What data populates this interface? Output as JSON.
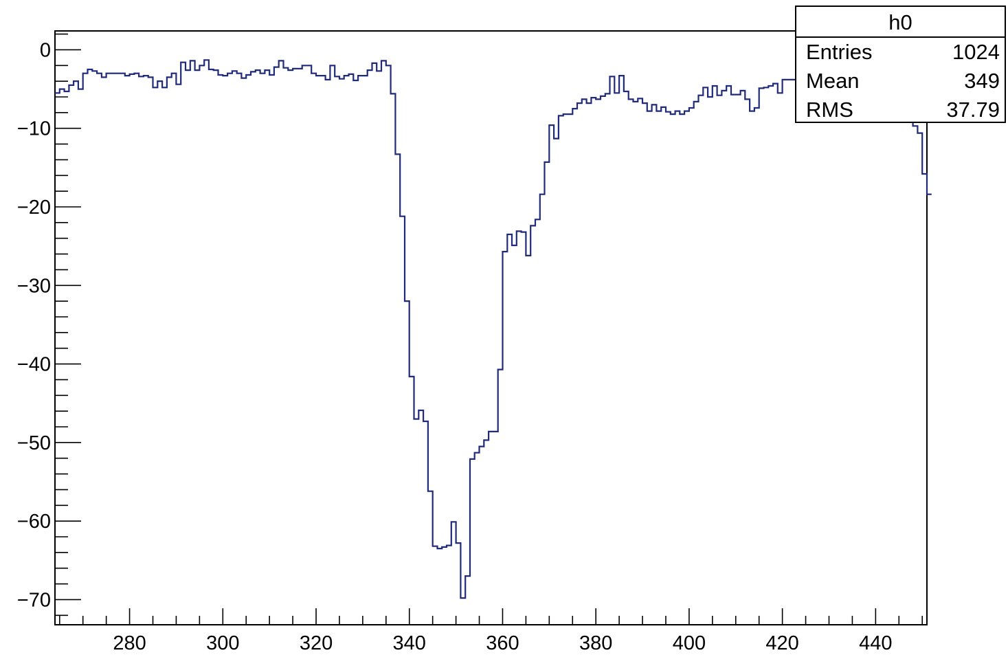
{
  "chart_data": {
    "type": "line",
    "drawstyle": "steps",
    "title": "",
    "xlabel": "",
    "ylabel": "",
    "xlim": [
      264,
      451
    ],
    "ylim": [
      -73.2,
      2.4
    ],
    "x_ticks": [
      280,
      300,
      320,
      340,
      360,
      380,
      400,
      420,
      440
    ],
    "y_ticks": [
      0,
      -10,
      -20,
      -30,
      -40,
      -50,
      -60,
      -70
    ],
    "bin_width": 1,
    "series": [
      {
        "color": "#1f2a7a",
        "x_start": 264,
        "values": [
          -5.5,
          -5,
          -5.3,
          -4.5,
          -4,
          -5,
          -3,
          -2.5,
          -2.7,
          -3,
          -3.5,
          -3,
          -3,
          -3,
          -3,
          -3.3,
          -3.1,
          -3,
          -3.4,
          -3.3,
          -3.5,
          -4.8,
          -4,
          -4.8,
          -3.5,
          -3,
          -4.4,
          -1.6,
          -2.6,
          -1.4,
          -2.6,
          -2,
          -1.3,
          -2.5,
          -2.6,
          -3.2,
          -3.3,
          -3,
          -2.7,
          -3,
          -3.6,
          -3.2,
          -2.8,
          -2.6,
          -3,
          -2.6,
          -3.2,
          -2.2,
          -1.4,
          -2.3,
          -2.6,
          -2.4,
          -2.4,
          -2,
          -2,
          -3,
          -3.3,
          -3.3,
          -3.8,
          -2,
          -3.4,
          -3.7,
          -3.3,
          -3.1,
          -3.9,
          -3.3,
          -3.3,
          -2.6,
          -1.7,
          -2.7,
          -1.4,
          -2,
          -5.6,
          -13.3,
          -21.2,
          -32.0,
          -41.6,
          -47.0,
          -45.9,
          -47.3,
          -56.2,
          -63.2,
          -63.5,
          -63.3,
          -63.1,
          -60.1,
          -62.8,
          -69.8,
          -67.0,
          -52.1,
          -51.3,
          -50.5,
          -49.7,
          -48.6,
          -48.6,
          -40.7,
          -25.7,
          -23.5,
          -24.9,
          -23.1,
          -23.2,
          -26.2,
          -22.4,
          -21.6,
          -18.4,
          -14.3,
          -9.6,
          -11.3,
          -8.4,
          -8.2,
          -8.2,
          -7.5,
          -6.8,
          -6.3,
          -6.8,
          -6.1,
          -6.3,
          -5.9,
          -5.6,
          -3.4,
          -5.5,
          -3.3,
          -5.3,
          -6.3,
          -6.6,
          -6.2,
          -6.8,
          -7.8,
          -7,
          -7.8,
          -7.3,
          -7.9,
          -8.2,
          -7.8,
          -8.2,
          -7.8,
          -7.4,
          -6.6,
          -5.8,
          -4.8,
          -6,
          -4.6,
          -5.8,
          -5.2,
          -4.6,
          -5.7,
          -5.7,
          -5.2,
          -6.3,
          -7.8,
          -7.4,
          -4.9,
          -4.8,
          -4.6,
          -4.3,
          -5.5,
          -3.8,
          -3.8,
          -3.8,
          -4.3,
          -3.8,
          -5,
          -3.2,
          -5.1,
          -4.4,
          -3.8,
          -6.6,
          -4.3,
          -4,
          -4.6,
          -4.3,
          -5.2,
          -3.2,
          -4.7,
          -2.8,
          -3.6,
          -3.8,
          -4.3,
          -3.3,
          -6.5,
          -5.5,
          -4.2,
          -4.8,
          -6.8,
          -9.7,
          -10.6,
          -15.8,
          -18.4
        ]
      }
    ]
  },
  "stats": {
    "title": "h0",
    "rows": [
      {
        "label": "Entries",
        "value": "1024"
      },
      {
        "label": "Mean",
        "value": "349"
      },
      {
        "label": "RMS",
        "value": "37.79"
      }
    ]
  }
}
